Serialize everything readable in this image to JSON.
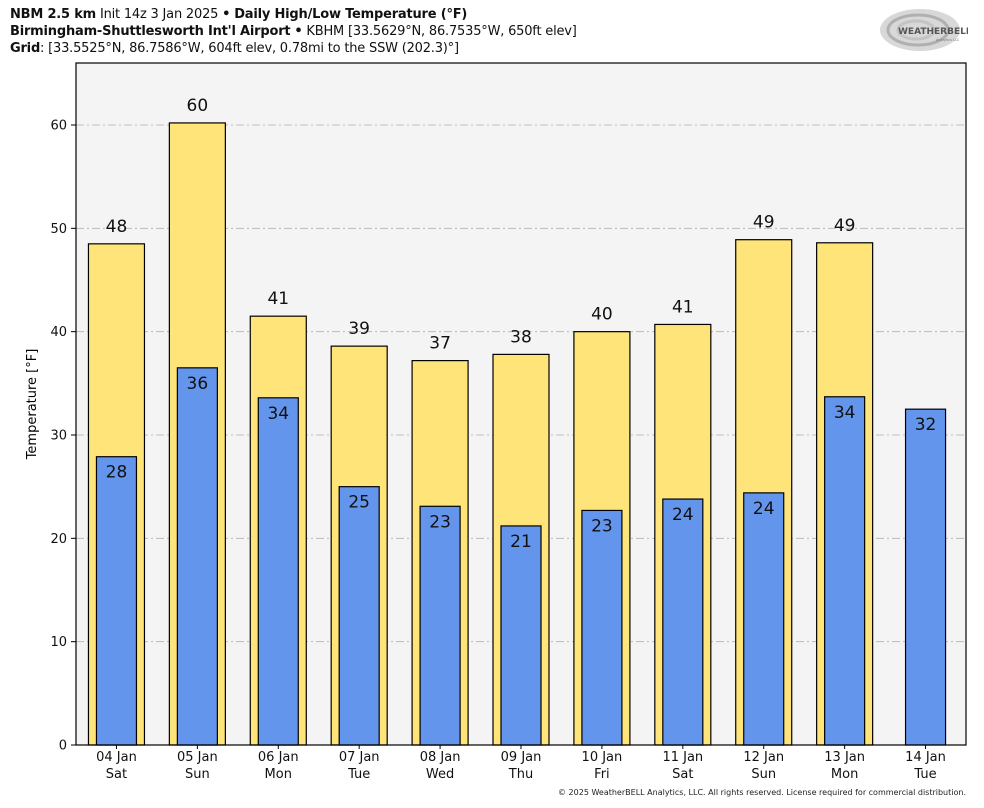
{
  "header": {
    "line1": {
      "model": "NBM 2.5 km",
      "init": "Init 14z 3 Jan 2025",
      "sep": "•",
      "product": "Daily High/Low Temperature (°F)"
    },
    "line2": {
      "station": "Birmingham-Shuttlesworth Int'l Airport",
      "sep": "•",
      "info": "KBHM [33.5629°N, 86.7535°W, 650ft elev]"
    },
    "line3": {
      "label": "Grid",
      "info": ": [33.5525°N, 86.7586°W, 604ft elev, 0.78mi to the SSW (202.3)°]"
    }
  },
  "logo": {
    "text_main": "WEATHERBELL",
    "text_sub": "Analytics LLC"
  },
  "footer": {
    "copyright": "© 2025 WeatherBELL Analytics, LLC. All rights reserved. License required for commercial distribution."
  },
  "colors": {
    "high": "#ffe47a",
    "low": "#6495ed",
    "plot_bg": "#f4f4f4",
    "grid": "#bbbbbb"
  },
  "chart_data": {
    "type": "bar",
    "title": "Daily High/Low Temperature (°F)",
    "xlabel": "",
    "ylabel": "Temperature [°F]",
    "ylim": [
      0,
      66
    ],
    "yticks": [
      0,
      10,
      20,
      30,
      40,
      50,
      60
    ],
    "grid": true,
    "categories": [
      [
        "04 Jan",
        "Sat"
      ],
      [
        "05 Jan",
        "Sun"
      ],
      [
        "06 Jan",
        "Mon"
      ],
      [
        "07 Jan",
        "Tue"
      ],
      [
        "08 Jan",
        "Wed"
      ],
      [
        "09 Jan",
        "Thu"
      ],
      [
        "10 Jan",
        "Fri"
      ],
      [
        "11 Jan",
        "Sat"
      ],
      [
        "12 Jan",
        "Sun"
      ],
      [
        "13 Jan",
        "Mon"
      ],
      [
        "14 Jan",
        "Tue"
      ]
    ],
    "series": [
      {
        "name": "High",
        "values": [
          48.5,
          60.2,
          41.5,
          38.6,
          37.2,
          37.8,
          40.0,
          40.7,
          48.9,
          48.6,
          null
        ],
        "labels": [
          "48",
          "60",
          "41",
          "39",
          "37",
          "38",
          "40",
          "41",
          "49",
          "49",
          null
        ]
      },
      {
        "name": "Low",
        "values": [
          27.9,
          36.5,
          33.6,
          25.0,
          23.1,
          21.2,
          22.7,
          23.8,
          24.4,
          33.7,
          32.5
        ],
        "labels": [
          "28",
          "36",
          "34",
          "25",
          "23",
          "21",
          "23",
          "24",
          "24",
          "34",
          "32"
        ]
      }
    ]
  }
}
